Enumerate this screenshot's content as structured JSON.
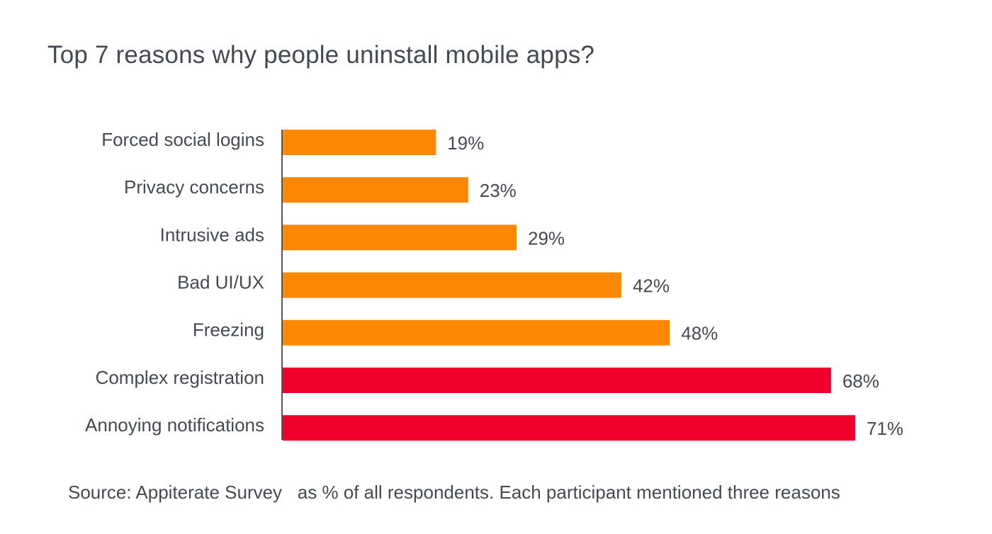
{
  "chart_data": {
    "type": "bar",
    "orientation": "horizontal",
    "title": "Top 7 reasons why people uninstall mobile apps?",
    "categories": [
      "Forced social logins",
      "Privacy concerns",
      "Intrusive ads",
      "Bad UI/UX",
      "Freezing",
      "Complex registration",
      "Annoying notifications"
    ],
    "values": [
      19,
      23,
      29,
      42,
      48,
      68,
      71
    ],
    "value_labels": [
      "19%",
      "23%",
      "29%",
      "42%",
      "48%",
      "68%",
      "71%"
    ],
    "bar_colors": [
      "#ff8800",
      "#ff8800",
      "#ff8800",
      "#ff8800",
      "#ff8800",
      "#f0002a",
      "#f0002a"
    ],
    "xlim": [
      0,
      100
    ],
    "grid": false,
    "source": "Source: Appiterate Survey   as % of all respondents. Each participant mentioned three reasons"
  }
}
